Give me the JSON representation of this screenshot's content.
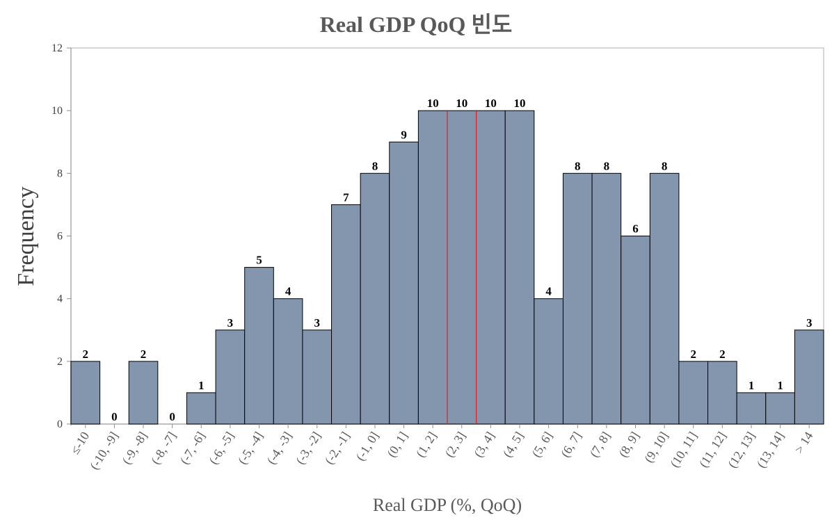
{
  "chart_data": {
    "type": "bar",
    "title": "Real GDP QoQ 빈도",
    "xlabel": "Real GDP (%, QoQ)",
    "ylabel": "Frequency",
    "ylim": [
      0,
      12
    ],
    "yticks": [
      "0",
      "2",
      "4",
      "6",
      "8",
      "10",
      "12"
    ],
    "categories": [
      "≤-10",
      "(-10, -9]",
      "(-9, -8]",
      "(-8, -7]",
      "(-7, -6]",
      "(-6, -5]",
      "(-5, -4]",
      "(-4, -3]",
      "(-3, -2]",
      "(-2, -1]",
      "(-1, 0]",
      "(0, 1]",
      "(1, 2]",
      "(2, 3]",
      "(3, 4]",
      "(4, 5]",
      "(5, 6]",
      "(6, 7]",
      "(7, 8]",
      "(8, 9]",
      "(9, 10]",
      "(10, 11]",
      "(11, 12]",
      "(12, 13]",
      "(13, 14]",
      "> 14"
    ],
    "values": [
      2,
      0,
      2,
      0,
      1,
      3,
      5,
      4,
      3,
      7,
      8,
      9,
      10,
      10,
      10,
      10,
      4,
      8,
      8,
      6,
      8,
      2,
      2,
      1,
      1,
      3
    ],
    "highlighted_category": "(2, 3]",
    "bar_color": "#8396ae",
    "highlight_edge_color": "#d9262c",
    "grid": false,
    "legend": "none"
  }
}
